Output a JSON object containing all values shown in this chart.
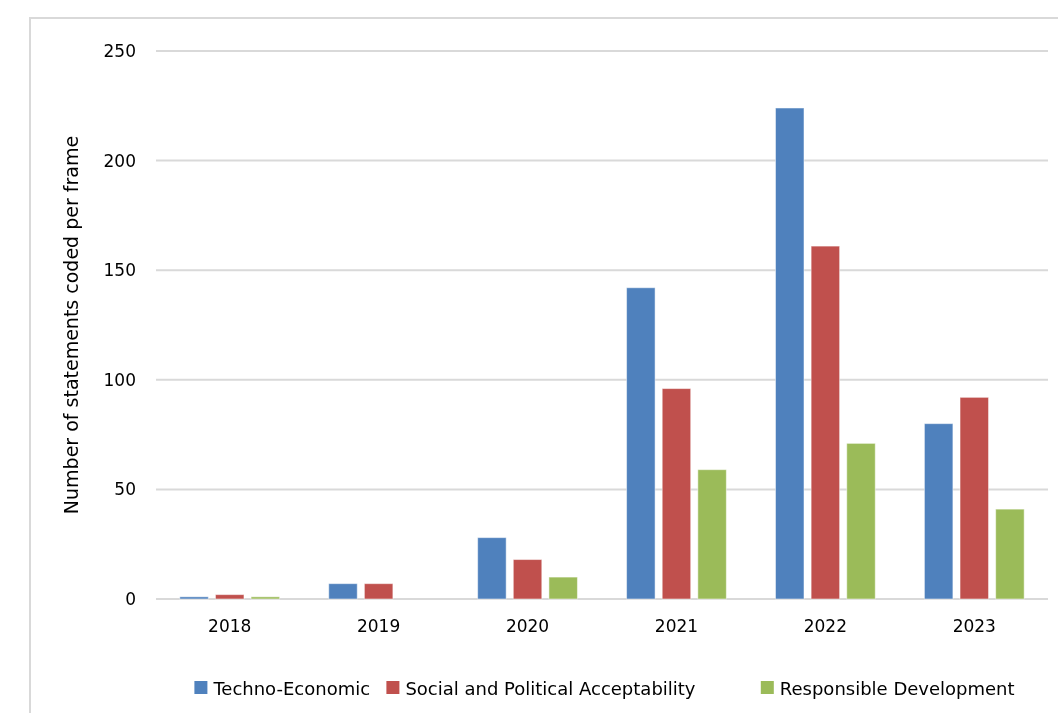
{
  "chart_data": {
    "type": "bar",
    "ylabel": "Number of statements coded per frame",
    "categories": [
      "2018",
      "2019",
      "2020",
      "2021",
      "2022",
      "2023"
    ],
    "series": [
      {
        "name": "Techno-Economic",
        "color": "#4f81bd",
        "values": [
          1,
          7,
          28,
          142,
          224,
          80
        ]
      },
      {
        "name": "Social and Political Acceptability",
        "color": "#c0504d",
        "values": [
          2,
          7,
          18,
          96,
          161,
          92
        ]
      },
      {
        "name": "Responsible Development",
        "color": "#9bbb59",
        "values": [
          1,
          0,
          10,
          59,
          71,
          41
        ]
      }
    ],
    "ylim": [
      0,
      250
    ],
    "yticks": [
      0,
      50,
      100,
      150,
      200,
      250
    ],
    "grid": "y",
    "legend": "bottom"
  }
}
